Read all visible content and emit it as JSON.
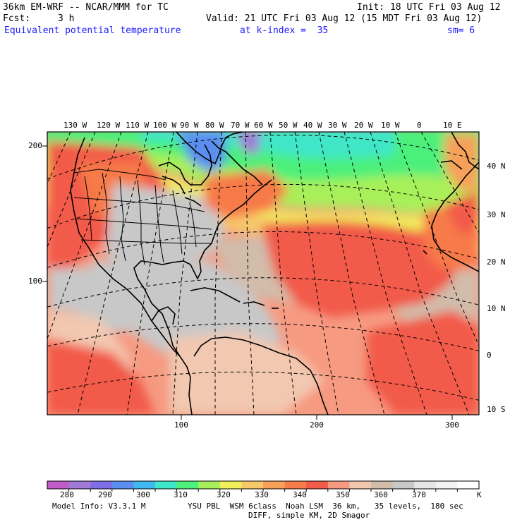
{
  "header": {
    "model": "36km EM-WRF -- NCAR/MMM for TC",
    "init": "Init: 18 UTC Fri 03 Aug 12",
    "fcst_label": "Fcst:",
    "fcst_value": "3 h",
    "valid": "Valid: 21 UTC Fri 03 Aug 12 (15 MDT Fri 03 Aug 12)",
    "field": "Equivalent potential temperature",
    "level": "at k-index =  35",
    "smooth": "sm= 6"
  },
  "map": {
    "top_lon_labels": [
      "130 W",
      "120 W",
      "110 W",
      "100 W",
      "90 W",
      "80 W",
      "70 W",
      "60 W",
      "50 W",
      "40 W",
      "30 W",
      "20 W",
      "10 W",
      "0",
      "10 E"
    ],
    "right_lat_labels": [
      "40 N",
      "30 N",
      "20 N",
      "10 N",
      "0",
      "10 S"
    ],
    "left_grid_labels": [
      "200",
      "100"
    ],
    "bottom_grid_labels": [
      "100",
      "200",
      "300"
    ]
  },
  "legend": {
    "colors": [
      "#c25cc8",
      "#a07ad6",
      "#7f6ee6",
      "#5b8ef0",
      "#3fb8f0",
      "#3fe6c8",
      "#4cf07a",
      "#a8f05a",
      "#f0f05a",
      "#f7c86a",
      "#f7a05a",
      "#f77a4a",
      "#f25a4a",
      "#f79a82",
      "#f2c8b0",
      "#d2bcaa",
      "#c8c8c8",
      "#e6e6e6",
      "#f2f2f2",
      "#ffffff"
    ],
    "labels": [
      "280",
      "290",
      "300",
      "310",
      "320",
      "330",
      "340",
      "350",
      "360",
      "370"
    ],
    "unit": "K"
  },
  "footer": {
    "model_info": "Model Info: V3.3.1 M",
    "physics": "YSU PBL  WSM 6class  Noah LSM  36 km,   35 levels,  180 sec",
    "diff": "DIFF, simple KM, 2D Smagor"
  }
}
